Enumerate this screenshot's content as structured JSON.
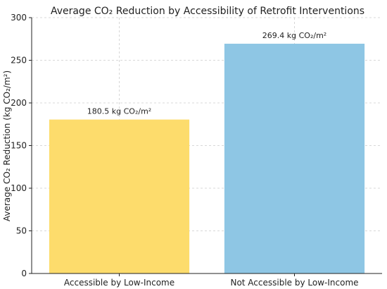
{
  "chart_data": {
    "type": "bar",
    "title": "Average CO₂ Reduction by Accessibility of Retrofit Interventions",
    "xlabel": "",
    "ylabel": "Average CO₂ Reduction (kg CO₂/m²)",
    "categories": [
      "Accessible by Low-Income",
      "Not Accessible by Low-Income"
    ],
    "values": [
      180.5,
      269.4
    ],
    "data_labels": [
      "180.5 kg CO₂/m²",
      "269.4 kg CO₂/m²"
    ],
    "colors": [
      "#fddc6c",
      "#8ec6e4"
    ],
    "ylim": [
      0,
      300
    ],
    "yticks": [
      0,
      50,
      100,
      150,
      200,
      250,
      300
    ],
    "grid": true
  }
}
